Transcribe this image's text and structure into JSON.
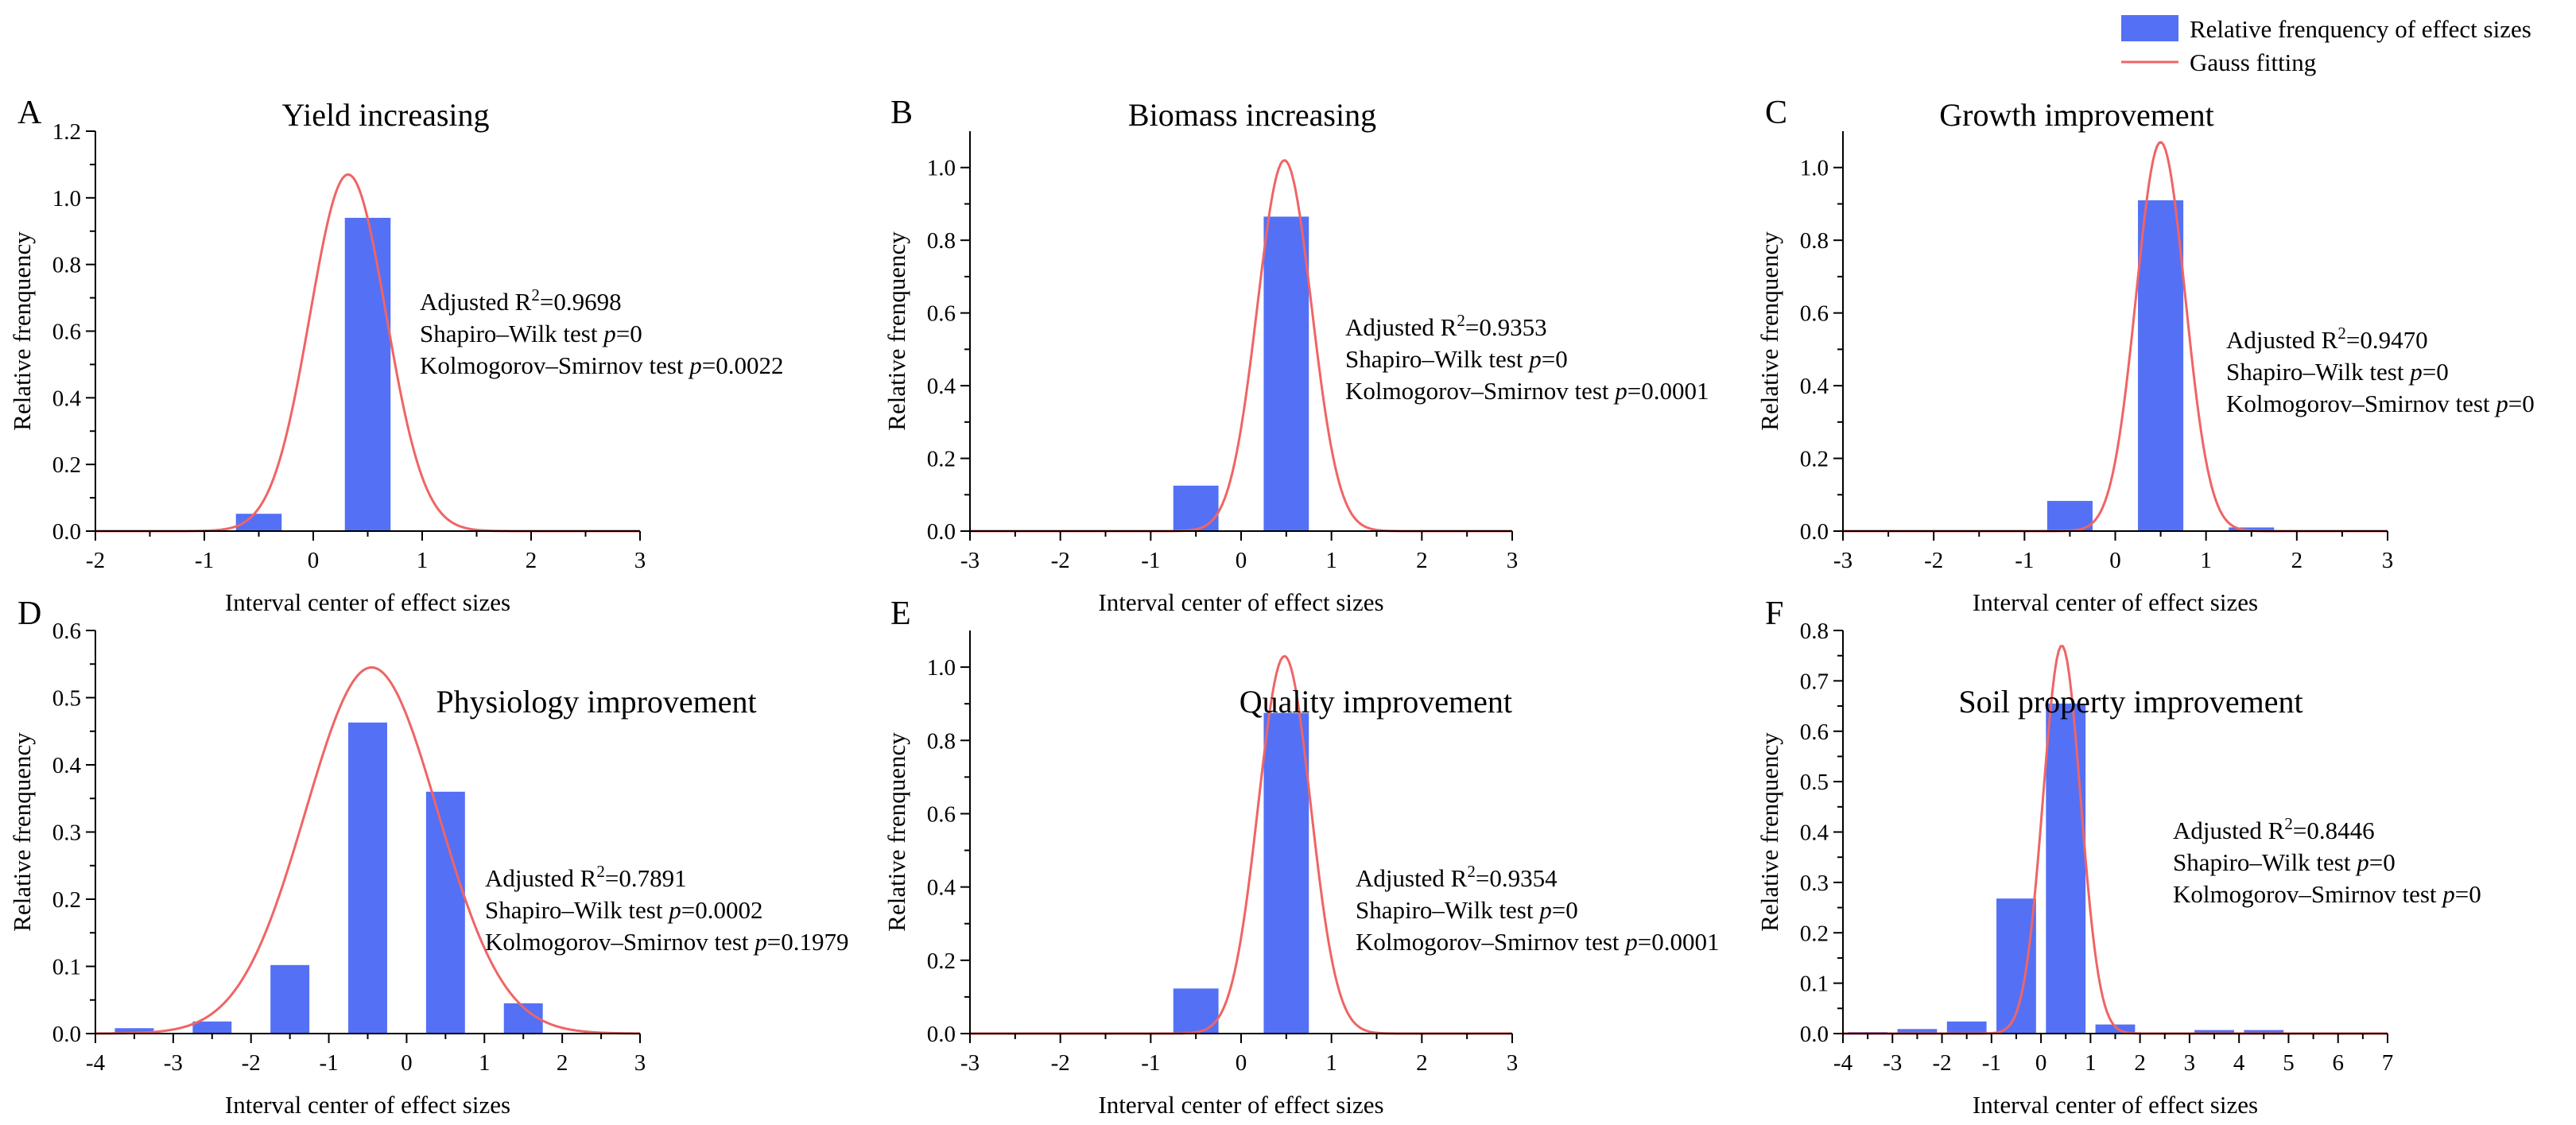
{
  "legend": {
    "bar_label": "Relative frenquency of effect sizes",
    "line_label": "Gauss fitting",
    "bar_color": "#5470f5",
    "line_color": "#f06464"
  },
  "chart_data": [
    {
      "type": "bar",
      "letter": "A",
      "title": "Yield increasing",
      "xlabel": "Interval center of effect sizes",
      "ylabel": "Relative frenquency",
      "xlim": [
        -2,
        3
      ],
      "ylim": [
        0,
        1.2
      ],
      "xticks": [
        -2,
        -1,
        0,
        1,
        2,
        3
      ],
      "yticks": [
        0.0,
        0.2,
        0.4,
        0.6,
        0.8,
        1.0,
        1.2
      ],
      "ytick_labels": [
        "0.0",
        "0.2",
        "0.4",
        "0.6",
        "0.8",
        "1.0",
        "1.2"
      ],
      "bar_width": 0.42,
      "bars": [
        {
          "x": -0.5,
          "y": 0.052
        },
        {
          "x": 0.5,
          "y": 0.94
        }
      ],
      "gauss": {
        "mu": 0.32,
        "sigma": 0.35,
        "amp": 1.07
      },
      "stats": {
        "r2_prefix": "Adjusted R",
        "r2_sup": "2",
        "r2_value": "=0.9698",
        "sw_prefix": "Shapiro–Wilk test ",
        "sw_p": "p",
        "sw_value": "=0",
        "ks_prefix": "Kolmogorov–Smirnov test ",
        "ks_p": "p",
        "ks_value": "=0.0022"
      }
    },
    {
      "type": "bar",
      "letter": "B",
      "title": "Biomass increasing",
      "xlabel": "Interval center of effect sizes",
      "ylabel": "Relative frenquency",
      "xlim": [
        -3,
        3
      ],
      "ylim": [
        0,
        1.1
      ],
      "xticks": [
        -3,
        -2,
        -1,
        0,
        1,
        2,
        3
      ],
      "yticks": [
        0.0,
        0.2,
        0.4,
        0.6,
        0.8,
        1.0
      ],
      "ytick_labels": [
        "0.0",
        "0.2",
        "0.4",
        "0.6",
        "0.8",
        "1.0"
      ],
      "bar_width": 0.5,
      "bars": [
        {
          "x": -0.5,
          "y": 0.125
        },
        {
          "x": 0.5,
          "y": 0.865
        }
      ],
      "gauss": {
        "mu": 0.48,
        "sigma": 0.3,
        "amp": 1.02
      },
      "stats": {
        "r2_prefix": "Adjusted R",
        "r2_sup": "2",
        "r2_value": "=0.9353",
        "sw_prefix": "Shapiro–Wilk test ",
        "sw_p": "p",
        "sw_value": "=0",
        "ks_prefix": "Kolmogorov–Smirnov test ",
        "ks_p": "p",
        "ks_value": "=0.0001"
      }
    },
    {
      "type": "bar",
      "letter": "C",
      "title": "Growth improvement",
      "xlabel": "Interval center of effect sizes",
      "ylabel": "Relative frenquency",
      "xlim": [
        -3,
        3
      ],
      "ylim": [
        0,
        1.1
      ],
      "xticks": [
        -3,
        -2,
        -1,
        0,
        1,
        2,
        3
      ],
      "yticks": [
        0.0,
        0.2,
        0.4,
        0.6,
        0.8,
        1.0
      ],
      "ytick_labels": [
        "0.0",
        "0.2",
        "0.4",
        "0.6",
        "0.8",
        "1.0"
      ],
      "bar_width": 0.5,
      "bars": [
        {
          "x": -0.5,
          "y": 0.083
        },
        {
          "x": 0.5,
          "y": 0.91
        },
        {
          "x": 1.5,
          "y": 0.01
        }
      ],
      "gauss": {
        "mu": 0.5,
        "sigma": 0.27,
        "amp": 1.07
      },
      "stats": {
        "r2_prefix": "Adjusted R",
        "r2_sup": "2",
        "r2_value": "=0.9470",
        "sw_prefix": "Shapiro–Wilk test ",
        "sw_p": "p",
        "sw_value": "=0",
        "ks_prefix": "Kolmogorov–Smirnov test ",
        "ks_p": "p",
        "ks_value": "=0"
      }
    },
    {
      "type": "bar",
      "letter": "D",
      "title": "Physiology improvement",
      "xlabel": "Interval center of effect sizes",
      "ylabel": "Relative frenquency",
      "xlim": [
        -4,
        3
      ],
      "ylim": [
        0,
        0.6
      ],
      "xticks": [
        -4,
        -3,
        -2,
        -1,
        0,
        1,
        2,
        3
      ],
      "yticks": [
        0.0,
        0.1,
        0.2,
        0.3,
        0.4,
        0.5,
        0.6
      ],
      "ytick_labels": [
        "0.0",
        "0.1",
        "0.2",
        "0.3",
        "0.4",
        "0.5",
        "0.6"
      ],
      "bar_width": 0.5,
      "bars": [
        {
          "x": -3.5,
          "y": 0.008
        },
        {
          "x": -2.5,
          "y": 0.018
        },
        {
          "x": -1.5,
          "y": 0.102
        },
        {
          "x": -0.5,
          "y": 0.463
        },
        {
          "x": 0.5,
          "y": 0.36
        },
        {
          "x": 1.5,
          "y": 0.045
        }
      ],
      "gauss": {
        "mu": -0.45,
        "sigma": 0.85,
        "amp": 0.545
      },
      "stats": {
        "r2_prefix": "Adjusted R",
        "r2_sup": "2",
        "r2_value": "=0.7891",
        "sw_prefix": "Shapiro–Wilk test ",
        "sw_p": "p",
        "sw_value": "=0.0002",
        "ks_prefix": "Kolmogorov–Smirnov test ",
        "ks_p": "p",
        "ks_value": "=0.1979"
      }
    },
    {
      "type": "bar",
      "letter": "E",
      "title": "Quality improvement",
      "xlabel": "Interval center of effect sizes",
      "ylabel": "Relative frenquency",
      "xlim": [
        -3,
        3
      ],
      "ylim": [
        0,
        1.1
      ],
      "xticks": [
        -3,
        -2,
        -1,
        0,
        1,
        2,
        3
      ],
      "yticks": [
        0.0,
        0.2,
        0.4,
        0.6,
        0.8,
        1.0
      ],
      "ytick_labels": [
        "0.0",
        "0.2",
        "0.4",
        "0.6",
        "0.8",
        "1.0"
      ],
      "bar_width": 0.5,
      "bars": [
        {
          "x": -0.5,
          "y": 0.123
        },
        {
          "x": 0.5,
          "y": 0.875
        }
      ],
      "gauss": {
        "mu": 0.48,
        "sigma": 0.29,
        "amp": 1.03
      },
      "stats": {
        "r2_prefix": "Adjusted R",
        "r2_sup": "2",
        "r2_value": "=0.9354",
        "sw_prefix": "Shapiro–Wilk test ",
        "sw_p": "p",
        "sw_value": "=0",
        "ks_prefix": "Kolmogorov–Smirnov test ",
        "ks_p": "p",
        "ks_value": "=0.0001"
      }
    },
    {
      "type": "bar",
      "letter": "F",
      "title": "Soil property improvement",
      "xlabel": "Interval center of effect sizes",
      "ylabel": "Relative frenquency",
      "xlim": [
        -4,
        7
      ],
      "ylim": [
        0,
        0.8
      ],
      "xticks": [
        -4,
        -3,
        -2,
        -1,
        0,
        1,
        2,
        3,
        4,
        5,
        6,
        7
      ],
      "yticks": [
        0.0,
        0.1,
        0.2,
        0.3,
        0.4,
        0.5,
        0.6,
        0.7,
        0.8
      ],
      "ytick_labels": [
        "0.0",
        "0.1",
        "0.2",
        "0.3",
        "0.4",
        "0.5",
        "0.6",
        "0.7",
        "0.8"
      ],
      "bar_width": 0.8,
      "bars": [
        {
          "x": -3.5,
          "y": 0.003
        },
        {
          "x": -2.5,
          "y": 0.009
        },
        {
          "x": -1.5,
          "y": 0.024
        },
        {
          "x": -0.5,
          "y": 0.268
        },
        {
          "x": 0.5,
          "y": 0.655
        },
        {
          "x": 1.5,
          "y": 0.018
        },
        {
          "x": 2.5,
          "y": 0.002
        },
        {
          "x": 3.5,
          "y": 0.007
        },
        {
          "x": 4.5,
          "y": 0.007
        },
        {
          "x": 5.5,
          "y": 0.001
        },
        {
          "x": 6.5,
          "y": 0.001
        }
      ],
      "gauss": {
        "mu": 0.42,
        "sigma": 0.38,
        "amp": 0.77
      },
      "stats": {
        "r2_prefix": "Adjusted R",
        "r2_sup": "2",
        "r2_value": "=0.8446",
        "sw_prefix": "Shapiro–Wilk test ",
        "sw_p": "p",
        "sw_value": "=0",
        "ks_prefix": "Kolmogorov–Smirnov test ",
        "ks_p": "p",
        "ks_value": "=0"
      }
    }
  ]
}
